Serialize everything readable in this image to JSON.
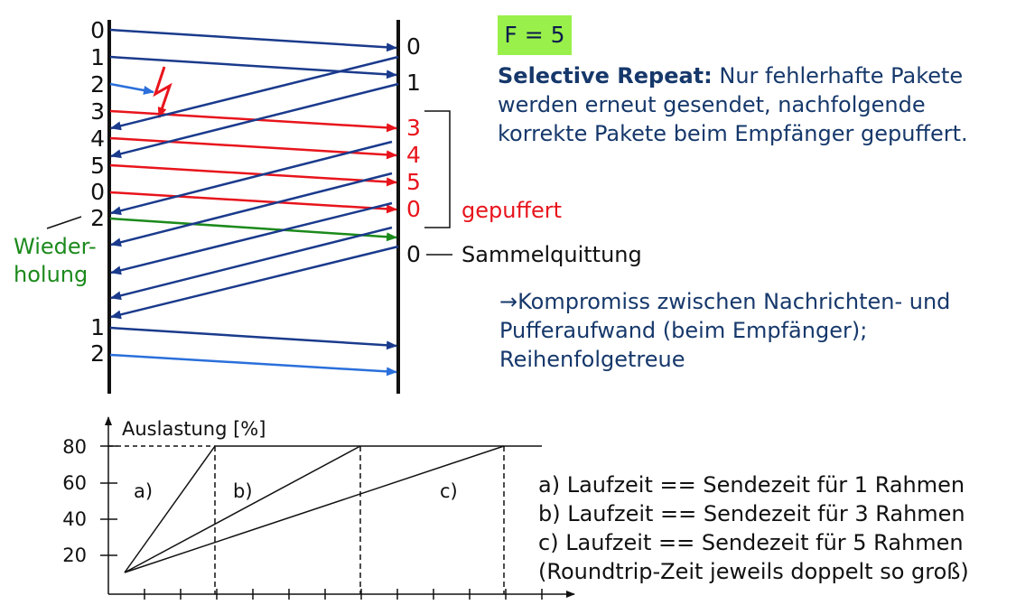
{
  "badge": "F = 5",
  "description": {
    "title": "Selective Repeat:",
    "line1_rest": " Nur fehlerhafte Pakete",
    "line2": "werden erneut gesendet, nachfolgende",
    "line3": "korrekte Pakete beim Empfänger gepuffert."
  },
  "sender_labels": [
    "0",
    "1",
    "2",
    "3",
    "4",
    "5",
    "0",
    "2",
    "1",
    "2"
  ],
  "receiver_labels": [
    "0",
    "1",
    "3",
    "4",
    "5",
    "0",
    "0"
  ],
  "buffered_label": "gepuffert",
  "retransmission_label": [
    "Wieder-",
    "holung"
  ],
  "collective_ack_label": "Sammelquittung",
  "conclusion": {
    "line1": "→Kompromiss zwischen Nachrichten- und",
    "line2": "Pufferaufwand (beim Empfänger);",
    "line3": "Reihenfolgetreue"
  },
  "chart_data": {
    "type": "line",
    "ylabel": "Auslastung [%]",
    "y_ticks": [
      "80",
      "60",
      "40",
      "20"
    ],
    "curve_labels": [
      "a)",
      "b)",
      "c)"
    ],
    "legend": [
      "a) Laufzeit == Sendezeit für 1 Rahmen",
      "b) Laufzeit == Sendezeit für 3 Rahmen",
      "c) Laufzeit == Sendezeit für 5 Rahmen",
      "(Roundtrip-Zeit jeweils doppelt so groß)"
    ]
  },
  "colors": {
    "dark_blue": "#1a3a8c",
    "light_blue": "#2a6fdb",
    "red": "#e8141c",
    "green": "#1c8a1c",
    "badge_bg": "#99f04a"
  }
}
